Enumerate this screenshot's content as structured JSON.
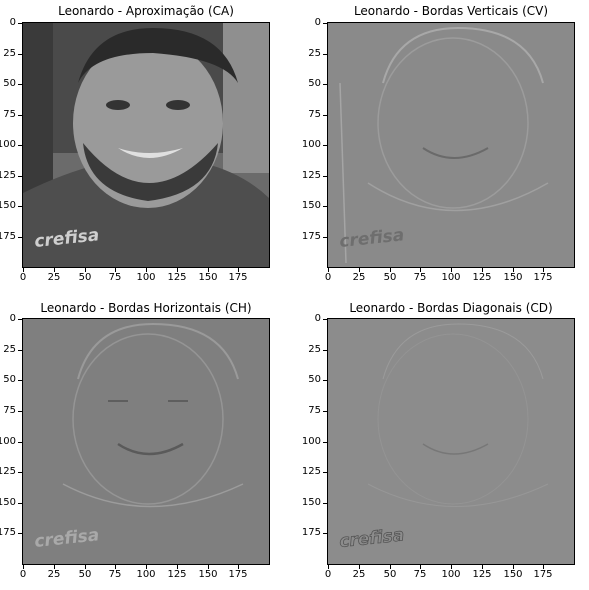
{
  "panels": [
    {
      "title": "Leonardo - Aproximação (CA)",
      "kind": "approx"
    },
    {
      "title": "Leonardo - Bordas Verticais (CV)",
      "kind": "edge-v"
    },
    {
      "title": "Leonardo - Bordas Horizontais (CH)",
      "kind": "edge-h"
    },
    {
      "title": "Leonardo - Bordas Diagonais (CD)",
      "kind": "edge-d"
    }
  ],
  "y_ticks": [
    "0",
    "25",
    "50",
    "75",
    "100",
    "125",
    "150",
    "175"
  ],
  "x_ticks": [
    "0",
    "25",
    "50",
    "75",
    "100",
    "125",
    "150",
    "175"
  ],
  "shirt_text": "crefisa",
  "colors": {
    "edge_gray": "#8a8a8a",
    "approx_bg": "#5a5a5a"
  }
}
